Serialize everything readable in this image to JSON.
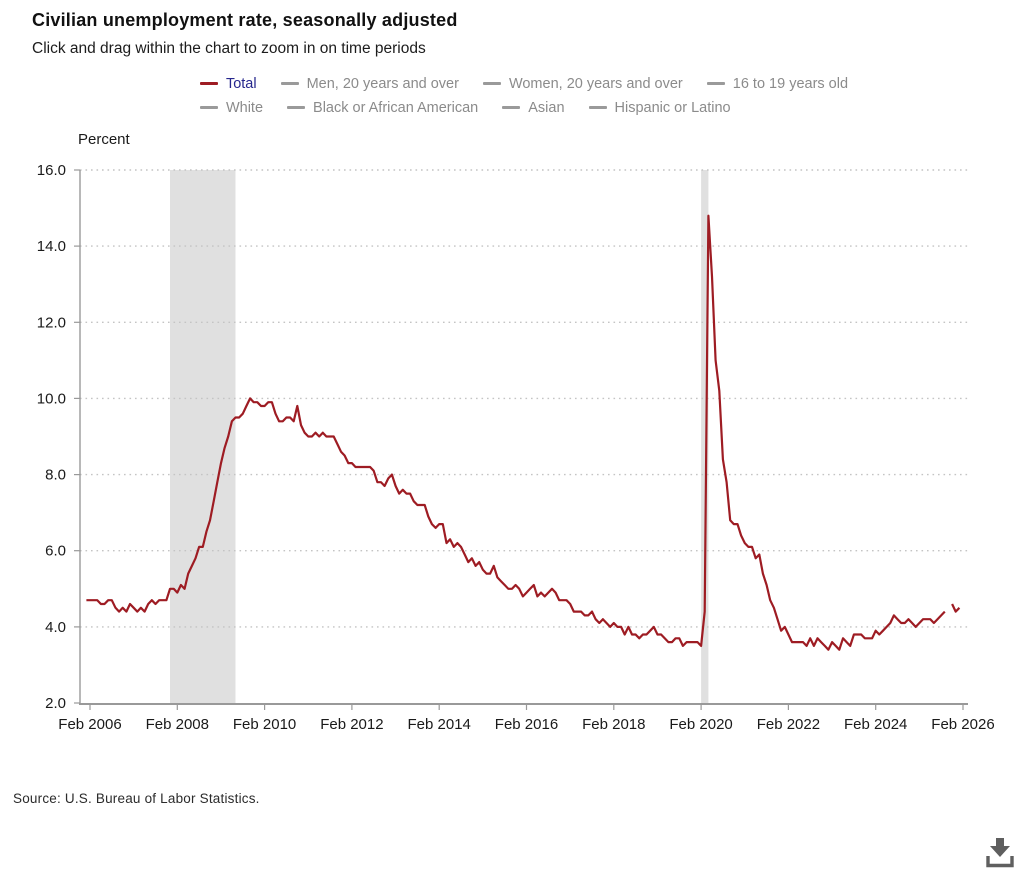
{
  "header": {
    "title": "Civilian unemployment rate, seasonally adjusted",
    "subtitle": "Click and drag within the chart to zoom in on time periods"
  },
  "legend": {
    "rows": [
      [
        {
          "label": "Total",
          "active": true
        },
        {
          "label": "Men, 20 years and over",
          "active": false
        },
        {
          "label": "Women, 20 years and over",
          "active": false
        },
        {
          "label": "16 to 19 years old",
          "active": false
        }
      ],
      [
        {
          "label": "White",
          "active": false
        },
        {
          "label": "Black or African American",
          "active": false
        },
        {
          "label": "Asian",
          "active": false
        },
        {
          "label": "Hispanic or Latino",
          "active": false
        }
      ]
    ]
  },
  "footer": {
    "source": "Source: U.S. Bureau of Labor Statistics."
  },
  "colors": {
    "accent": "#9e1c23",
    "total_label": "#26278d",
    "legend_text": "#8b8b8b",
    "legend_swatch": "#9a9a9a",
    "band": "#e0e0e0",
    "grid": "#c4c4c4",
    "axis": "#999999",
    "tick_text": "#1a1a1a",
    "title_text": "#111111",
    "source_text": "#2b2b2b",
    "icon": "#5f5f5f",
    "background": "#ffffff"
  },
  "chart_data": {
    "type": "line",
    "title": "Civilian unemployment rate, seasonally adjusted",
    "xlabel": "",
    "ylabel": "Percent",
    "ylim": [
      2,
      16
    ],
    "grid": "dotted-horizontal",
    "legend_position": "top",
    "y_ticks": [
      2,
      4,
      6,
      8,
      10,
      12,
      14,
      16
    ],
    "x_ticks": [
      {
        "label": "Feb 2006",
        "m": 1
      },
      {
        "label": "Feb 2008",
        "m": 25
      },
      {
        "label": "Feb 2010",
        "m": 49
      },
      {
        "label": "Feb 2012",
        "m": 73
      },
      {
        "label": "Feb 2014",
        "m": 97
      },
      {
        "label": "Feb 2016",
        "m": 121
      },
      {
        "label": "Feb 2018",
        "m": 145
      },
      {
        "label": "Feb 2020",
        "m": 169
      },
      {
        "label": "Feb 2022",
        "m": 193
      },
      {
        "label": "Feb 2024",
        "m": 217
      },
      {
        "label": "Feb 2026",
        "m": 241
      }
    ],
    "recession_bands": [
      {
        "from": "2007-12",
        "to": "2009-06"
      },
      {
        "from": "2020-02",
        "to": "2020-04"
      }
    ],
    "data_gap_months": [
      "2025-10"
    ],
    "series": [
      {
        "name": "Total",
        "start": "2006-01",
        "unit": "percent",
        "values_by_year": {
          "2006": [
            4.7,
            4.7,
            4.7,
            4.7,
            4.6,
            4.6,
            4.7,
            4.7,
            4.5,
            4.4,
            4.5,
            4.4
          ],
          "2007": [
            4.6,
            4.5,
            4.4,
            4.5,
            4.4,
            4.6,
            4.7,
            4.6,
            4.7,
            4.7,
            4.7,
            5.0
          ],
          "2008": [
            5.0,
            4.9,
            5.1,
            5.0,
            5.4,
            5.6,
            5.8,
            6.1,
            6.1,
            6.5,
            6.8,
            7.3
          ],
          "2009": [
            7.8,
            8.3,
            8.7,
            9.0,
            9.4,
            9.5,
            9.5,
            9.6,
            9.8,
            10.0,
            9.9,
            9.9
          ],
          "2010": [
            9.8,
            9.8,
            9.9,
            9.9,
            9.6,
            9.4,
            9.4,
            9.5,
            9.5,
            9.4,
            9.8,
            9.3
          ],
          "2011": [
            9.1,
            9.0,
            9.0,
            9.1,
            9.0,
            9.1,
            9.0,
            9.0,
            9.0,
            8.8,
            8.6,
            8.5
          ],
          "2012": [
            8.3,
            8.3,
            8.2,
            8.2,
            8.2,
            8.2,
            8.2,
            8.1,
            7.8,
            7.8,
            7.7,
            7.9
          ],
          "2013": [
            8.0,
            7.7,
            7.5,
            7.6,
            7.5,
            7.5,
            7.3,
            7.2,
            7.2,
            7.2,
            6.9,
            6.7
          ],
          "2014": [
            6.6,
            6.7,
            6.7,
            6.2,
            6.3,
            6.1,
            6.2,
            6.1,
            5.9,
            5.7,
            5.8,
            5.6
          ],
          "2015": [
            5.7,
            5.5,
            5.4,
            5.4,
            5.6,
            5.3,
            5.2,
            5.1,
            5.0,
            5.0,
            5.1,
            5.0
          ],
          "2016": [
            4.8,
            4.9,
            5.0,
            5.1,
            4.8,
            4.9,
            4.8,
            4.9,
            5.0,
            4.9,
            4.7,
            4.7
          ],
          "2017": [
            4.7,
            4.6,
            4.4,
            4.4,
            4.4,
            4.3,
            4.3,
            4.4,
            4.2,
            4.1,
            4.2,
            4.1
          ],
          "2018": [
            4.0,
            4.1,
            4.0,
            4.0,
            3.8,
            4.0,
            3.8,
            3.8,
            3.7,
            3.8,
            3.8,
            3.9
          ],
          "2019": [
            4.0,
            3.8,
            3.8,
            3.7,
            3.6,
            3.6,
            3.7,
            3.7,
            3.5,
            3.6,
            3.6,
            3.6
          ],
          "2020": [
            3.6,
            3.5,
            4.4,
            14.8,
            13.2,
            11.0,
            10.2,
            8.4,
            7.8,
            6.8,
            6.7,
            6.7
          ],
          "2021": [
            6.4,
            6.2,
            6.1,
            6.1,
            5.8,
            5.9,
            5.4,
            5.1,
            4.7,
            4.5,
            4.2,
            3.9
          ],
          "2022": [
            4.0,
            3.8,
            3.6,
            3.6,
            3.6,
            3.6,
            3.5,
            3.7,
            3.5,
            3.7,
            3.6,
            3.5
          ],
          "2023": [
            3.4,
            3.6,
            3.5,
            3.4,
            3.7,
            3.6,
            3.5,
            3.8,
            3.8,
            3.8,
            3.7,
            3.7
          ],
          "2024": [
            3.7,
            3.9,
            3.8,
            3.9,
            4.0,
            4.1,
            4.3,
            4.2,
            4.1,
            4.1,
            4.2,
            4.1
          ],
          "2025": [
            4.0,
            4.1,
            4.2,
            4.2,
            4.2,
            4.1,
            4.2,
            4.3,
            4.4,
            null,
            4.6,
            4.4
          ],
          "2026": [
            4.5
          ]
        }
      }
    ]
  }
}
